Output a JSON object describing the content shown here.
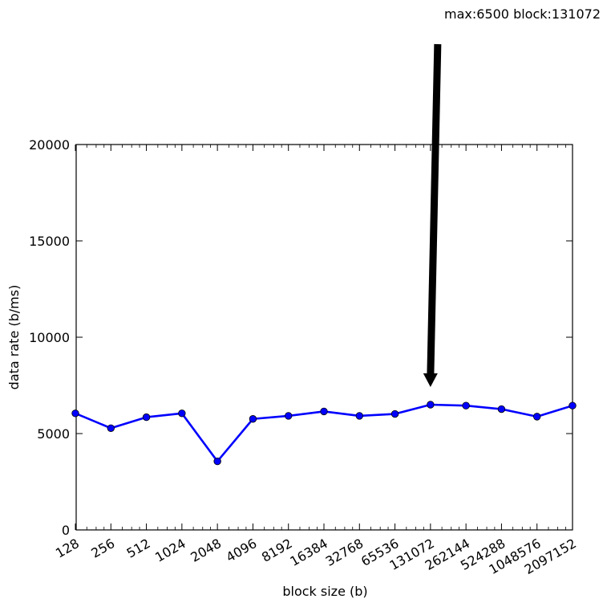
{
  "chart_data": {
    "type": "line",
    "title": "",
    "xlabel": "block size (b)",
    "ylabel": "data rate (b/ms)",
    "x_scale": "log2",
    "categories": [
      "128",
      "256",
      "512",
      "1024",
      "2048",
      "4096",
      "8192",
      "16384",
      "32768",
      "65536",
      "131072",
      "262144",
      "524288",
      "1048576",
      "2097152"
    ],
    "series": [
      {
        "values": [
          6050,
          5280,
          5850,
          6050,
          3560,
          5760,
          5920,
          6150,
          5920,
          6020,
          6500,
          6450,
          6270,
          5880,
          6450
        ],
        "color": "#0000ff",
        "marker": "circle"
      }
    ],
    "ylim": [
      0,
      20000
    ],
    "yticks": [
      0,
      5000,
      10000,
      15000,
      20000
    ],
    "grid": false,
    "annotation": {
      "text": "max:6500 block:131072",
      "target_category": "131072",
      "target_value": 6500
    }
  }
}
